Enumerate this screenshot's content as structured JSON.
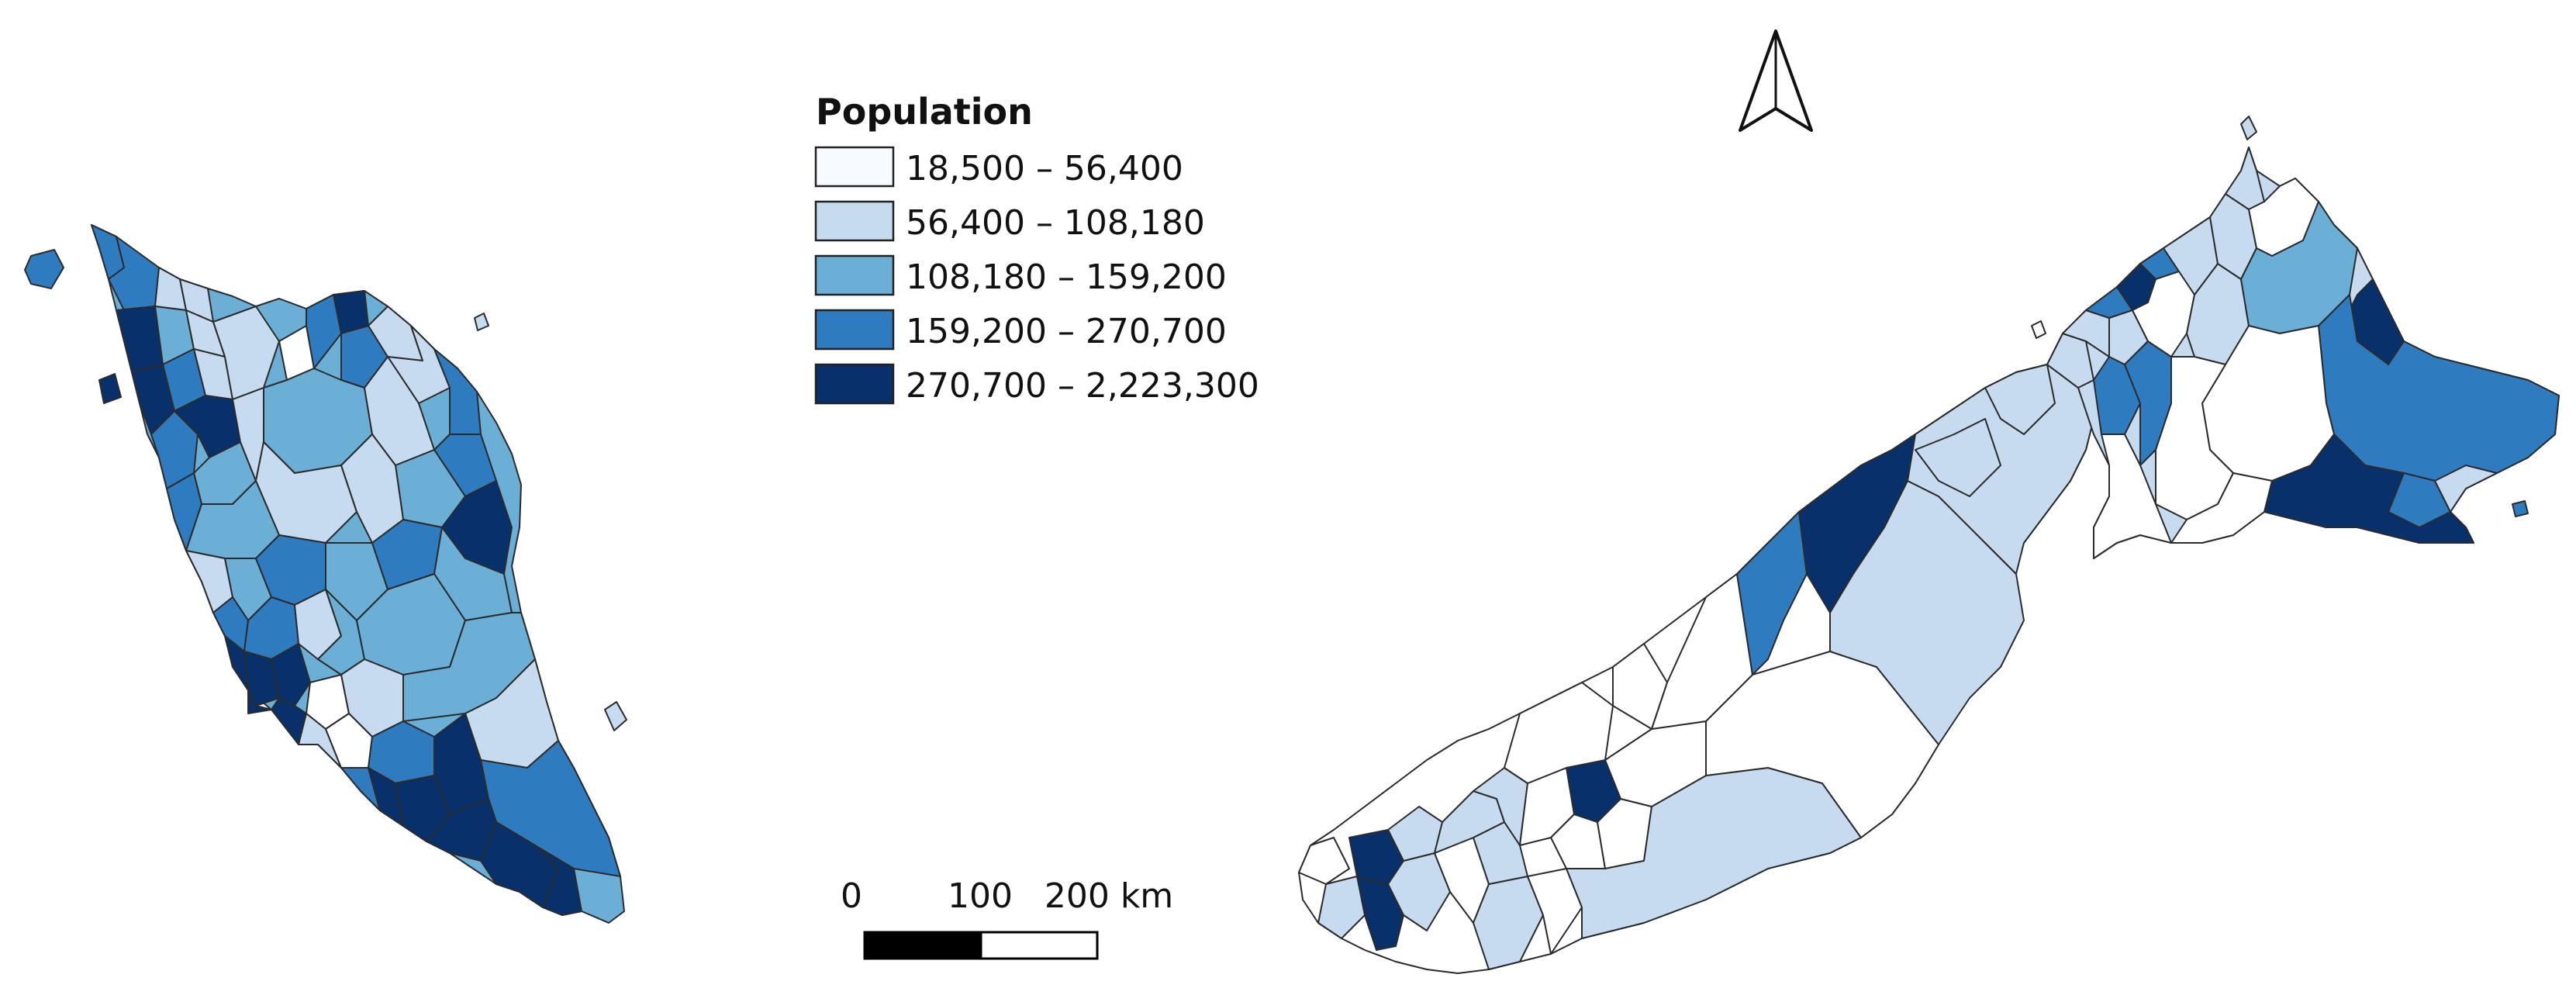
{
  "legend": {
    "title": "Population",
    "classes": [
      {
        "label": "18,500 – 56,400",
        "color": "#f7fbff"
      },
      {
        "label": "56,400 – 108,180",
        "color": "#c6dbef"
      },
      {
        "label": "108,180 – 159,200",
        "color": "#6baed6"
      },
      {
        "label": "159,200 – 270,700",
        "color": "#2f7bbf"
      },
      {
        "label": "270,700 – 2,223,300",
        "color": "#08306b"
      }
    ]
  },
  "scale_bar": {
    "tick_0": "0",
    "tick_1": "100",
    "tick_2": "200 km"
  },
  "north_arrow": {
    "icon": "north-arrow-icon"
  },
  "palette": {
    "class_1": "#f7fbff",
    "class_2": "#c6dbef",
    "class_3": "#6baed6",
    "class_4": "#2f7bbf",
    "class_5": "#08306b"
  }
}
